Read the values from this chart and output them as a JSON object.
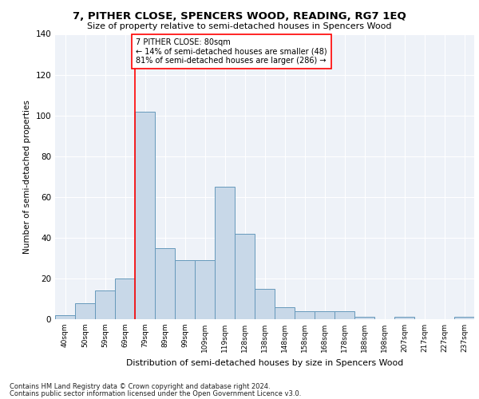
{
  "title": "7, PITHER CLOSE, SPENCERS WOOD, READING, RG7 1EQ",
  "subtitle": "Size of property relative to semi-detached houses in Spencers Wood",
  "xlabel": "Distribution of semi-detached houses by size in Spencers Wood",
  "ylabel": "Number of semi-detached properties",
  "categories": [
    "40sqm",
    "50sqm",
    "59sqm",
    "69sqm",
    "79sqm",
    "89sqm",
    "99sqm",
    "109sqm",
    "119sqm",
    "128sqm",
    "138sqm",
    "148sqm",
    "158sqm",
    "168sqm",
    "178sqm",
    "188sqm",
    "198sqm",
    "207sqm",
    "217sqm",
    "227sqm",
    "237sqm"
  ],
  "bar_heights": [
    2,
    8,
    14,
    20,
    102,
    35,
    29,
    29,
    65,
    42,
    15,
    6,
    4,
    4,
    4,
    1,
    0,
    1,
    0,
    0,
    1
  ],
  "bar_color": "#c8d8e8",
  "bar_edge_color": "#6699bb",
  "annotation_label": "7 PITHER CLOSE: 80sqm",
  "annotation_smaller": "← 14% of semi-detached houses are smaller (48)",
  "annotation_larger": "81% of semi-detached houses are larger (286) →",
  "redline_index": 4,
  "ylim": [
    0,
    140
  ],
  "yticks": [
    0,
    20,
    40,
    60,
    80,
    100,
    120,
    140
  ],
  "footer1": "Contains HM Land Registry data © Crown copyright and database right 2024.",
  "footer2": "Contains public sector information licensed under the Open Government Licence v3.0.",
  "plot_bg_color": "#eef2f8",
  "grid_color": "#ffffff"
}
